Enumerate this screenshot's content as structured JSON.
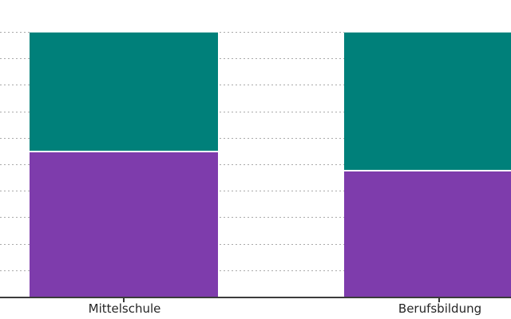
{
  "chart_data": {
    "type": "bar",
    "stacked": true,
    "orientation": "vertical",
    "normalized_to_100_percent": true,
    "title": "",
    "xlabel": "",
    "ylabel": "",
    "categories": [
      "Mittelschule",
      "Berufsbildung"
    ],
    "series": [
      {
        "name": "top-teal-segment",
        "color": "#00807a",
        "values": [
          45,
          52
        ]
      },
      {
        "name": "bottom-purple-segment",
        "color": "#7e3cac",
        "values": [
          55,
          48
        ]
      }
    ],
    "ylim": [
      0,
      100
    ],
    "ytick_step": 10,
    "y_tick_labels_visible": false,
    "grid": "horizontal-dashed",
    "legend": "none"
  },
  "colors": {
    "background": "#ffffff",
    "gridline": "#aaaaaa",
    "axis_line": "#3b3b3b",
    "tick_mark": "#3b3b3b",
    "tick_label_text": "#262626",
    "segment_divider": "#ffffff"
  }
}
